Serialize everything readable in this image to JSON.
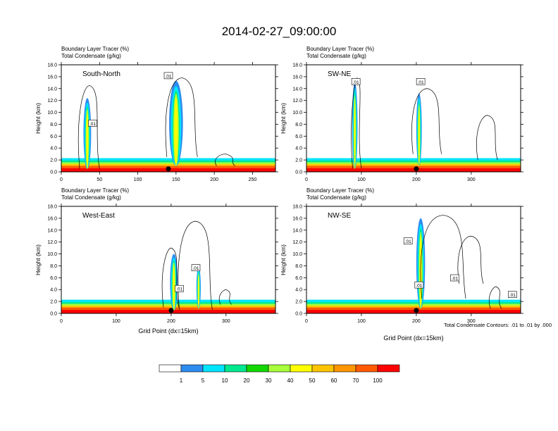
{
  "title": "2014-02-27_09:00:00",
  "y_tick_labels": [
    "0.0",
    "2.0",
    "4.0",
    "6.0",
    "8.0",
    "10.0",
    "12.0",
    "14.0",
    "16.0",
    "18.0"
  ],
  "palette": [
    "#ffffff",
    "#2d8cf0",
    "#00e5ff",
    "#00e890",
    "#12d800",
    "#a6ff3a",
    "#ffff00",
    "#ffc400",
    "#ff9600",
    "#ff5a00",
    "#ff0000"
  ],
  "colorbar_labels": [
    "1",
    "5",
    "10",
    "20",
    "30",
    "40",
    "50",
    "60",
    "70",
    "100"
  ],
  "contour_note": "Total Condensate Contours: .01 to .01 by .000",
  "chart_data": [
    {
      "type": "heatmap",
      "panel": "South-North",
      "subtitle_line1": "Boundary Layer Tracer    (%)",
      "subtitle_line2": "Total Condensate    (g/kg)",
      "ylabel": "Height (km)",
      "xlabel": "",
      "xlim": [
        0,
        280
      ],
      "ylim": [
        0,
        18
      ],
      "x_ticks": [
        0,
        50,
        100,
        150,
        200,
        250
      ],
      "y_ticks": [
        0,
        2,
        4,
        6,
        8,
        10,
        12,
        14,
        16,
        18
      ],
      "contour_labels": [
        ".01",
        ".01"
      ],
      "marker_x": 140
    },
    {
      "type": "heatmap",
      "panel": "SW-NE",
      "subtitle_line1": "Boundary Layer Tracer    (%)",
      "subtitle_line2": "Total Condensate    (g/kg)",
      "ylabel": "Height (km)",
      "xlabel": "",
      "xlim": [
        0,
        390
      ],
      "ylim": [
        0,
        18
      ],
      "x_ticks": [
        0,
        100,
        200,
        300
      ],
      "y_ticks": [
        0,
        2,
        4,
        6,
        8,
        10,
        12,
        14,
        16,
        18
      ],
      "contour_labels": [
        ".01",
        ".01"
      ],
      "marker_x": 200
    },
    {
      "type": "heatmap",
      "panel": "West-East",
      "subtitle_line1": "Boundary Layer Tracer    (%)",
      "subtitle_line2": "Total Condensate    (g/kg)",
      "ylabel": "Height (km)",
      "xlabel": "Grid Point (dx=15km)",
      "xlim": [
        0,
        390
      ],
      "ylim": [
        0,
        18
      ],
      "x_ticks": [
        0,
        100,
        200,
        300
      ],
      "y_ticks": [
        0,
        2,
        4,
        6,
        8,
        10,
        12,
        14,
        16,
        18
      ],
      "contour_labels": [
        ".01",
        ".01"
      ],
      "marker_x": 200
    },
    {
      "type": "heatmap",
      "panel": "NW-SE",
      "subtitle_line1": "Boundary Layer Tracer    (%)",
      "subtitle_line2": "Total Condensate    (g/kg)",
      "ylabel": "Height (km)",
      "xlabel": "Grid Point (dx=15km)",
      "xlim": [
        0,
        390
      ],
      "ylim": [
        0,
        18
      ],
      "x_ticks": [
        0,
        100,
        200,
        300
      ],
      "y_ticks": [
        0,
        2,
        4,
        6,
        8,
        10,
        12,
        14,
        16,
        18
      ],
      "contour_labels": [
        ".01",
        ".01",
        ".01",
        ".01"
      ],
      "marker_x": 200
    }
  ]
}
